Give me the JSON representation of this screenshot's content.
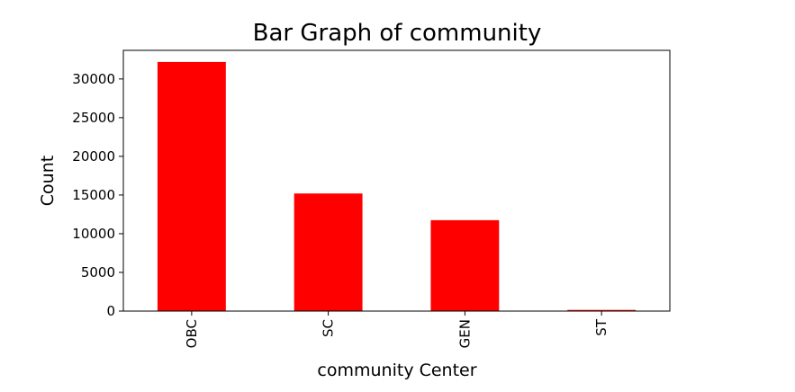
{
  "chart_data": {
    "type": "bar",
    "title": "Bar Graph of community",
    "xlabel": "community Center",
    "ylabel": "Count",
    "categories": [
      "OBC",
      "SC",
      "GEN",
      "ST"
    ],
    "values": [
      32200,
      15200,
      11750,
      150
    ],
    "ylim": [
      0,
      33700
    ],
    "yticks": [
      0,
      5000,
      10000,
      15000,
      20000,
      25000,
      30000
    ],
    "ytick_labels": [
      "0",
      "5000",
      "10000",
      "15000",
      "20000",
      "25000",
      "30000"
    ],
    "bar_color": "#ff0000",
    "grid": false,
    "legend": "none",
    "xtick_rotation": "vertical"
  }
}
